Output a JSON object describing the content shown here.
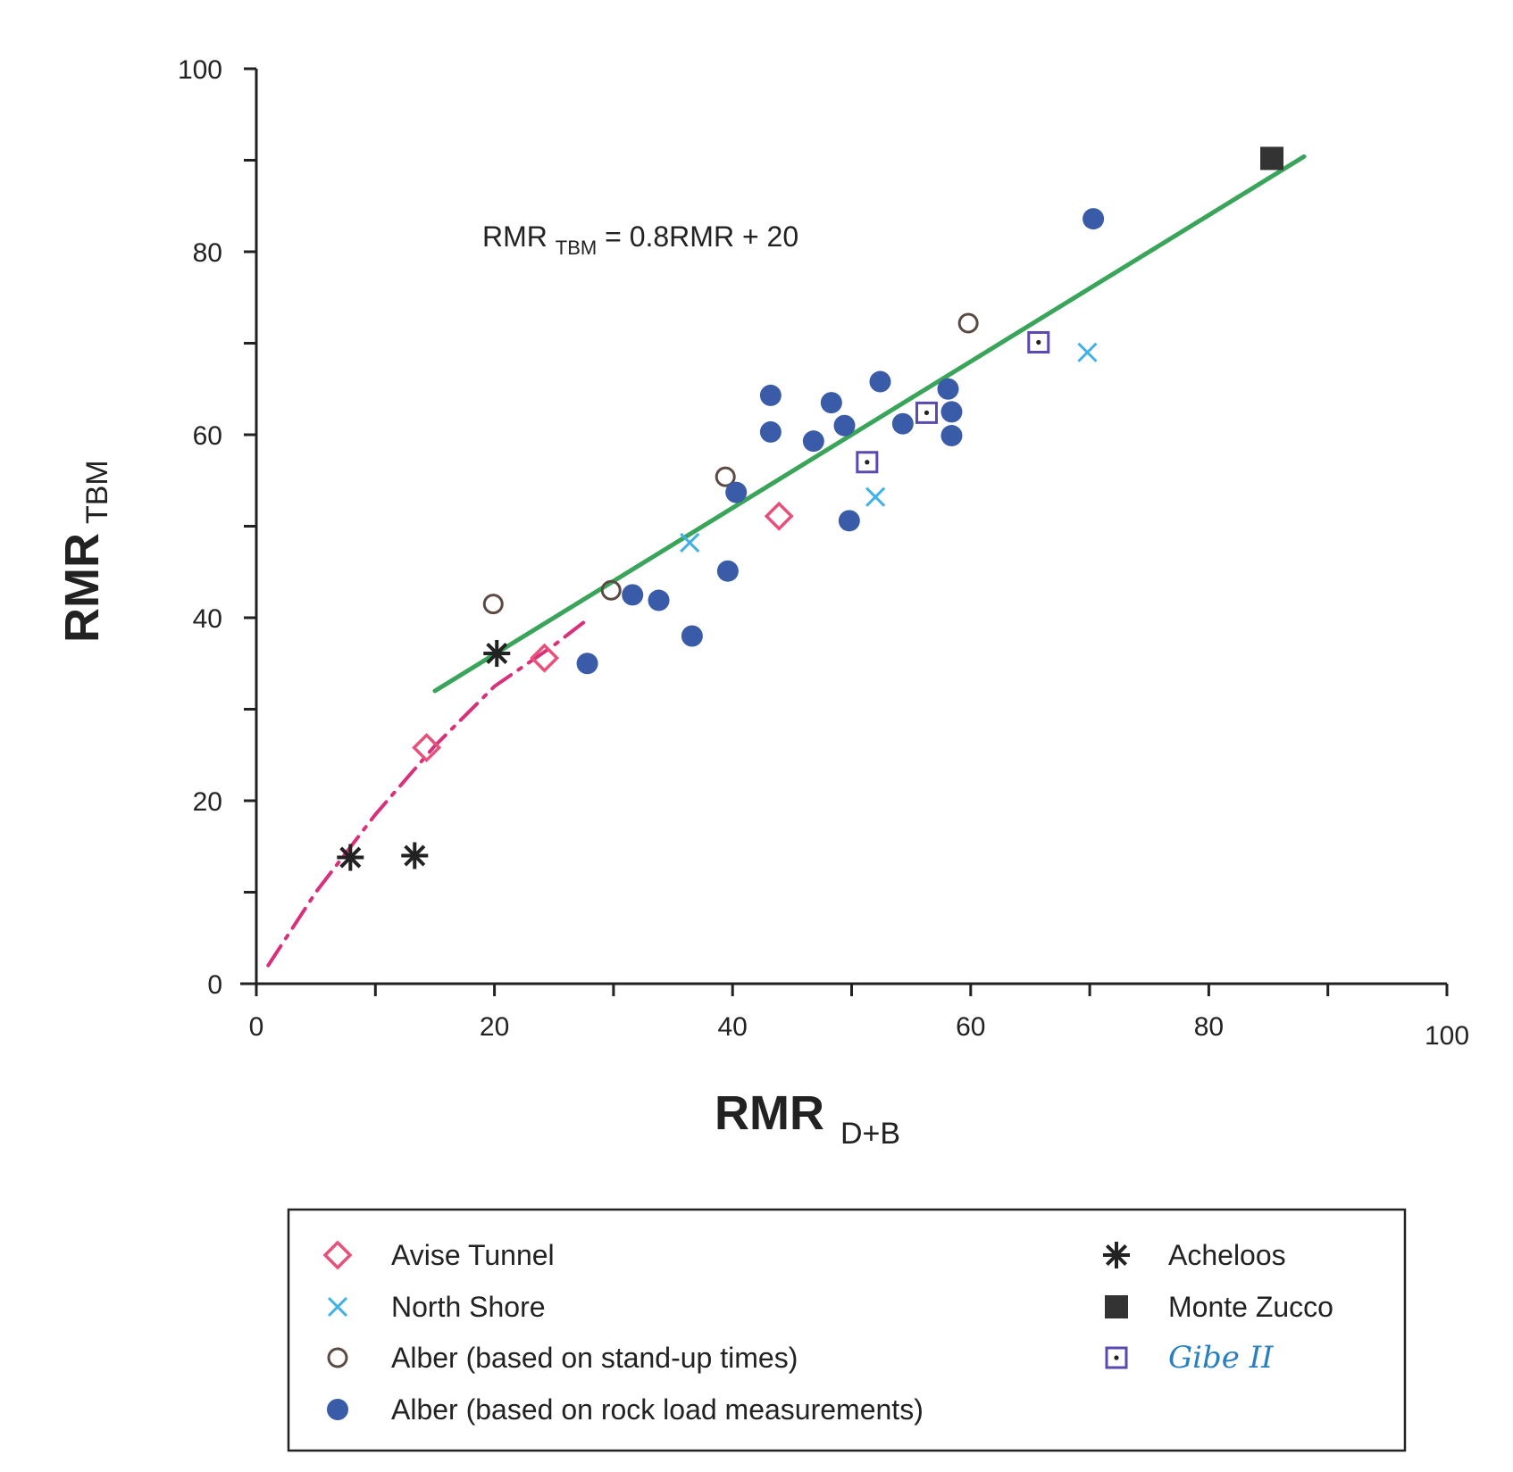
{
  "chart_data": {
    "type": "scatter",
    "xlabel": {
      "main": "RMR",
      "sub": "D+B"
    },
    "ylabel": {
      "main": "RMR",
      "sub": "TBM"
    },
    "xlim": [
      0,
      100
    ],
    "ylim": [
      0,
      100
    ],
    "x_ticks": [
      "0",
      "20",
      "40",
      "60",
      "80",
      "100"
    ],
    "y_ticks": [
      "0",
      "20",
      "40",
      "60",
      "80",
      "100"
    ],
    "grid": false,
    "legend_position": "bottom",
    "annotations": [
      {
        "parts": [
          "RMR ",
          "TBM",
          " = 0.8RMR + 20"
        ]
      }
    ],
    "fit_lines": [
      {
        "kind": "linear",
        "equation": "RMR_TBM = 0.8RMR + 20",
        "color": "#3aa55a",
        "x_range": [
          15,
          88
        ]
      },
      {
        "kind": "dashed-curve",
        "color": "#d9307a",
        "points": [
          [
            1,
            2
          ],
          [
            5,
            10
          ],
          [
            10,
            18.5
          ],
          [
            15,
            26
          ],
          [
            20,
            32.5
          ],
          [
            25,
            37
          ],
          [
            28,
            40
          ]
        ]
      }
    ],
    "series": [
      {
        "name": "Avise Tunnel",
        "marker": "diamond-open",
        "color": "#e8507a",
        "points": [
          [
            14.3,
            25.8
          ],
          [
            24.2,
            35.6
          ],
          [
            43.9,
            51.1
          ]
        ]
      },
      {
        "name": "North Shore",
        "marker": "x",
        "color": "#3fb0e8",
        "points": [
          [
            36.4,
            48.2
          ],
          [
            52,
            53.2
          ],
          [
            69.8,
            69
          ]
        ]
      },
      {
        "name": "Alber (based on stand-up times)",
        "marker": "circle-open",
        "color": "#5a4a42",
        "points": [
          [
            19.9,
            41.5
          ],
          [
            29.8,
            43
          ],
          [
            39.4,
            55.4
          ],
          [
            59.8,
            72.2
          ]
        ]
      },
      {
        "name": "Alber (based on rock load measurements)",
        "marker": "circle-filled",
        "color": "#3a5ca8",
        "points": [
          [
            27.8,
            35
          ],
          [
            31.6,
            42.5
          ],
          [
            33.8,
            41.9
          ],
          [
            36.6,
            38
          ],
          [
            39.6,
            45.1
          ],
          [
            40.3,
            53.7
          ],
          [
            43.2,
            64.3
          ],
          [
            43.2,
            60.3
          ],
          [
            46.8,
            59.3
          ],
          [
            48.3,
            63.5
          ],
          [
            49.4,
            61
          ],
          [
            49.8,
            50.6
          ],
          [
            52.4,
            65.8
          ],
          [
            54.3,
            61.2
          ],
          [
            58.1,
            65
          ],
          [
            58.4,
            62.5
          ],
          [
            58.4,
            59.9
          ],
          [
            70.3,
            83.6
          ]
        ]
      },
      {
        "name": "Acheloos",
        "marker": "asterisk",
        "color": "#222222",
        "points": [
          [
            7.9,
            13.8
          ],
          [
            13.3,
            14
          ],
          [
            20.2,
            36.1
          ]
        ]
      },
      {
        "name": "Monte Zucco",
        "marker": "square-filled",
        "color": "#333333",
        "points": [
          [
            85.3,
            90.2
          ]
        ]
      },
      {
        "name": "Gibe II",
        "marker": "square-dot",
        "color": "#5a4ab0",
        "points": [
          [
            51.3,
            57
          ],
          [
            56.3,
            62.4
          ],
          [
            65.7,
            70.1
          ]
        ]
      }
    ]
  }
}
